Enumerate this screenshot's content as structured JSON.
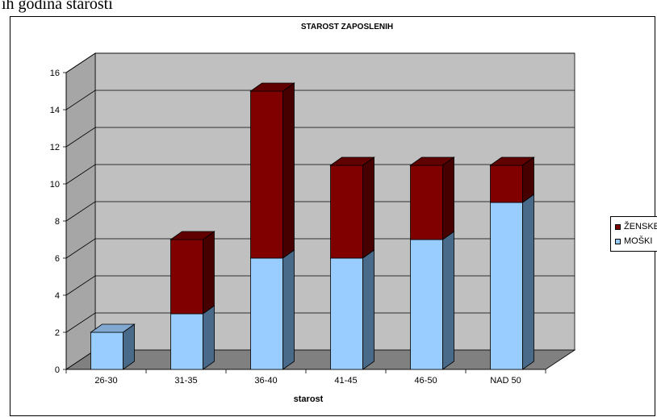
{
  "page_top_text": "ih godina starosti",
  "chart_data": {
    "type": "bar",
    "stacked": true,
    "three_d": true,
    "title": "STAROST ZAPOSLENIH",
    "xlabel": "starost",
    "ylabel": "",
    "ylim": [
      0,
      16
    ],
    "yticks": [
      0,
      2,
      4,
      6,
      8,
      10,
      12,
      14,
      16
    ],
    "grid": true,
    "legend_position": "right",
    "categories": [
      "26-30",
      "31-35",
      "36-40",
      "41-45",
      "46-50",
      "NAD 50"
    ],
    "series": [
      {
        "name": "MOŠKI",
        "values": [
          2,
          3,
          6,
          6,
          7,
          9
        ],
        "color": "#99ccff"
      },
      {
        "name": "ŽENSKE",
        "values": [
          0,
          4,
          9,
          5,
          4,
          2
        ],
        "color": "#800000"
      }
    ],
    "legend_order": [
      "ŽENSKE",
      "MOŠKI"
    ],
    "wall_color": "#c0c0c0",
    "floor_color": "#808080"
  }
}
